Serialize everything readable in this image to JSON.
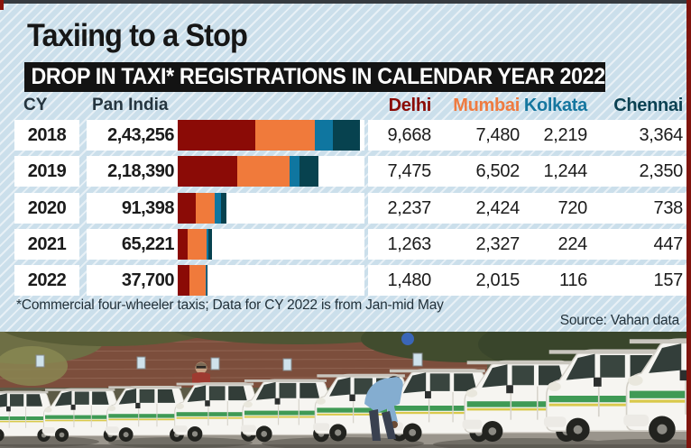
{
  "page": {
    "title": "Taxiing to a Stop",
    "banner": "DROP IN TAXI* REGISTRATIONS IN CALENDAR YEAR 2022",
    "footnote": "*Commercial four-wheeler taxis; Data for CY 2022 is from Jan-mid May",
    "source": "Source: Vahan data"
  },
  "table": {
    "col_cy": "CY",
    "col_pan_india": "Pan India",
    "city_columns": [
      {
        "label": "Delhi",
        "color": "#8a0b06"
      },
      {
        "label": "Mumbai",
        "color": "#ef7b40"
      },
      {
        "label": "Kolkata",
        "color": "#15769f"
      },
      {
        "label": "Chennai",
        "color": "#0b4152"
      }
    ],
    "rows": [
      {
        "year": "2018",
        "pan_india": "2,43,256",
        "delhi": "9,668",
        "mumbai": "7,480",
        "kolkata": "2,219",
        "chennai": "3,364"
      },
      {
        "year": "2019",
        "pan_india": "2,18,390",
        "delhi": "7,475",
        "mumbai": "6,502",
        "kolkata": "1,244",
        "chennai": "2,350"
      },
      {
        "year": "2020",
        "pan_india": "91,398",
        "delhi": "2,237",
        "mumbai": "2,424",
        "kolkata": "720",
        "chennai": "738"
      },
      {
        "year": "2021",
        "pan_india": "65,221",
        "delhi": "1,263",
        "mumbai": "2,327",
        "kolkata": "224",
        "chennai": "447"
      },
      {
        "year": "2022",
        "pan_india": "37,700",
        "delhi": "1,480",
        "mumbai": "2,015",
        "kolkata": "116",
        "chennai": "157"
      }
    ]
  },
  "chart_data": {
    "type": "bar",
    "subtype": "stacked-horizontal",
    "title": "DROP IN TAXI* REGISTRATIONS IN CALENDAR YEAR 2022",
    "categories": [
      "2018",
      "2019",
      "2020",
      "2021",
      "2022"
    ],
    "pan_india_totals": [
      243256,
      218390,
      91398,
      65221,
      37700
    ],
    "series": [
      {
        "name": "Delhi",
        "color": "#8b0b06",
        "values": [
          9668,
          7475,
          2237,
          1263,
          1480
        ]
      },
      {
        "name": "Mumbai",
        "color": "#f07a3b",
        "values": [
          7480,
          6502,
          2424,
          2327,
          2015
        ]
      },
      {
        "name": "Kolkata",
        "color": "#0f76a0",
        "values": [
          2219,
          1244,
          720,
          224,
          116
        ]
      },
      {
        "name": "Chennai",
        "color": "#07424f",
        "values": [
          3364,
          2350,
          738,
          447,
          157
        ]
      }
    ],
    "bar_scaling": "bar length proportional to four-city total; 2018 row is longest",
    "footnote": "*Commercial four-wheeler taxis; Data for CY 2022 is from Jan-mid May",
    "source": "Source: Vahan data",
    "legend_position": "column headers act as legend",
    "grid": false
  },
  "colors": {
    "background": "#cbdfeb",
    "stripe": "#ffffff",
    "banner_bg": "#131313",
    "banner_text": "#ffffff",
    "cell_bg": "#ffffff",
    "text_dark": "#25353f",
    "number_text": "#1b1b1b",
    "page_border_red": "#7f140d",
    "top_strip": "#363b40"
  }
}
